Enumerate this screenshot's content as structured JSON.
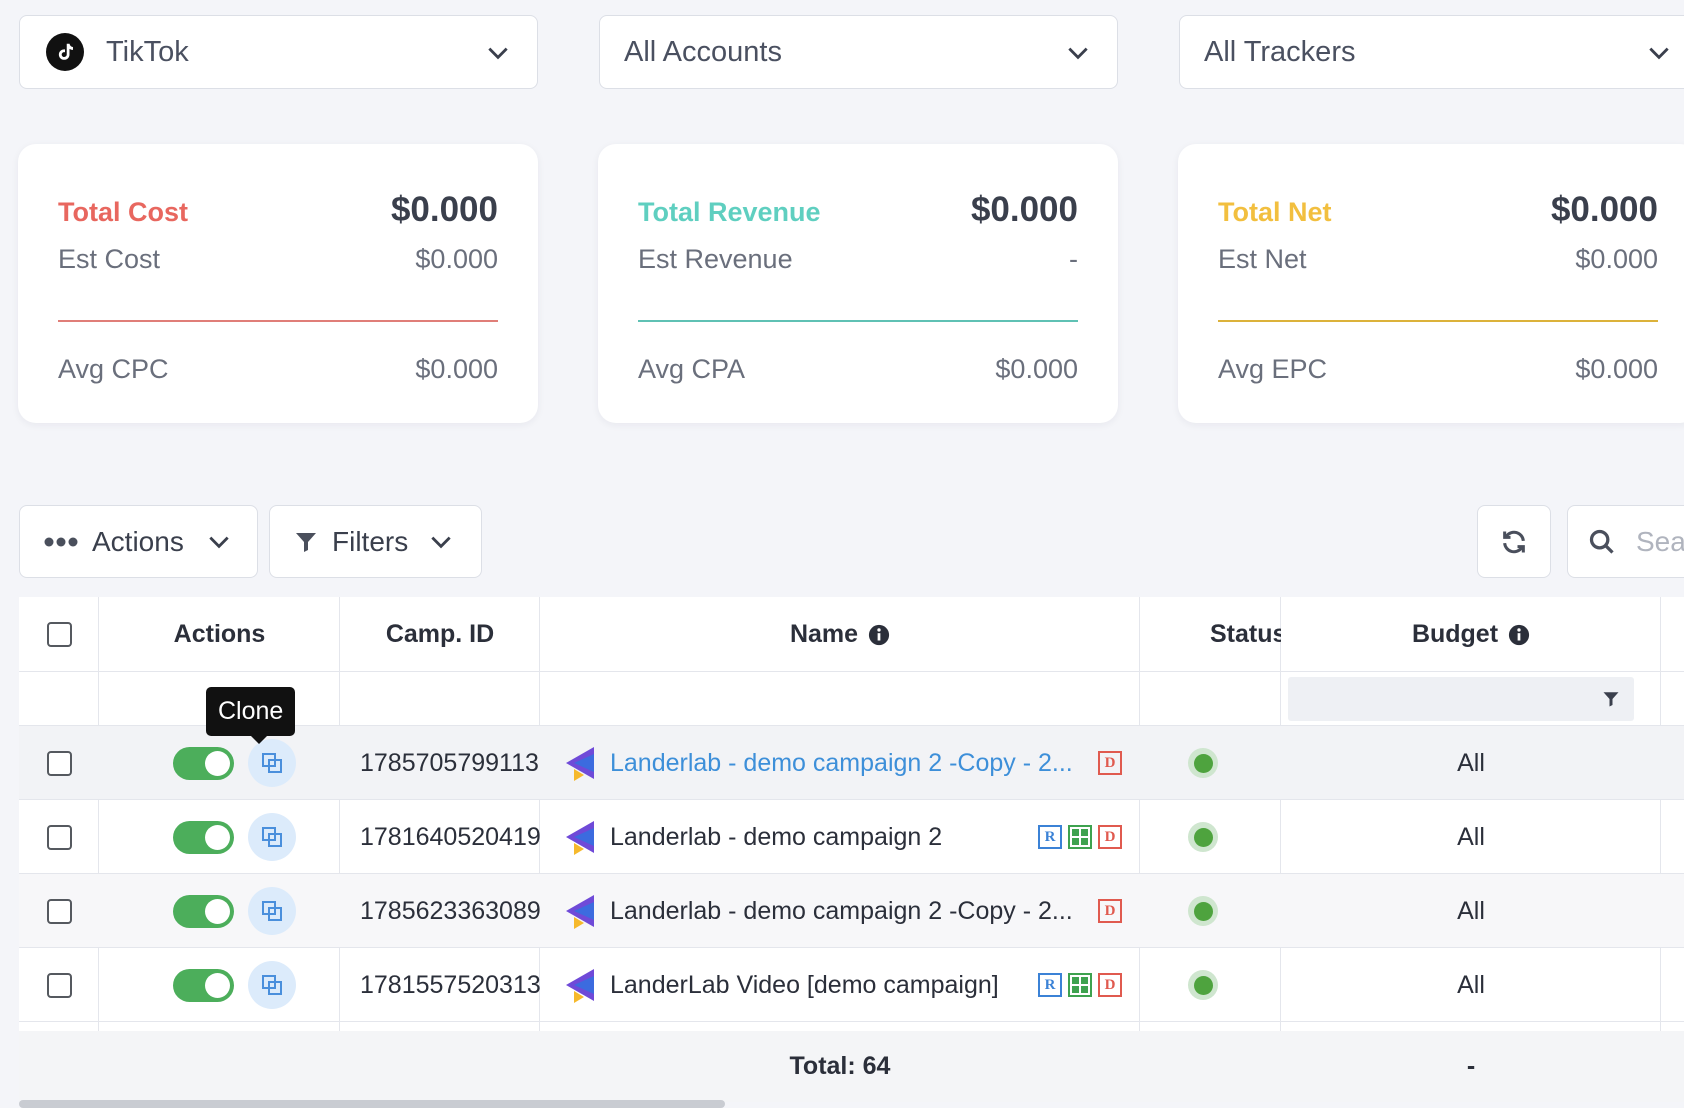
{
  "selectors": {
    "platform": "TikTok",
    "accounts": "All Accounts",
    "trackers": "All Trackers"
  },
  "cards": [
    {
      "title": "Total Cost",
      "title_color": "#e8675f",
      "total": "$0.000",
      "est_label": "Est Cost",
      "est_value": "$0.000",
      "avg_label": "Avg CPC",
      "avg_value": "$0.000",
      "rule_color": "#e07e78"
    },
    {
      "title": "Total Revenue",
      "title_color": "#5fcfc0",
      "total": "$0.000",
      "est_label": "Est Revenue",
      "est_value": "-",
      "avg_label": "Avg CPA",
      "avg_value": "$0.000",
      "rule_color": "#5fc1b4"
    },
    {
      "title": "Total Net",
      "title_color": "#f2bf3f",
      "total": "$0.000",
      "est_label": "Est Net",
      "est_value": "$0.000",
      "avg_label": "Avg EPC",
      "avg_value": "$0.000",
      "rule_color": "#dcb23a"
    }
  ],
  "toolbar": {
    "actions_label": "Actions",
    "filters_label": "Filters",
    "search_placeholder": "Sea"
  },
  "table": {
    "headers": {
      "actions": "Actions",
      "camp_id": "Camp. ID",
      "name": "Name",
      "status": "Status",
      "budget": "Budget"
    },
    "rows": [
      {
        "camp_id": "1785705799113",
        "name": "Landerlab - demo campaign 2 -Copy - 2...",
        "budget": "All",
        "badges": [
          "D"
        ],
        "link": true
      },
      {
        "camp_id": "1781640520419",
        "name": "Landerlab - demo campaign 2",
        "budget": "All",
        "badges": [
          "R",
          "G",
          "D"
        ],
        "link": false
      },
      {
        "camp_id": "1785623363089",
        "name": "Landerlab - demo campaign 2 -Copy - 2...",
        "budget": "All",
        "badges": [
          "D"
        ],
        "link": false
      },
      {
        "camp_id": "1781557520313",
        "name": "LanderLab Video [demo campaign]",
        "budget": "All",
        "badges": [
          "R",
          "G",
          "D"
        ],
        "link": false
      }
    ],
    "footer": {
      "total": "Total: 64",
      "budget": "-"
    }
  },
  "tooltip": "Clone",
  "colors": {
    "toggle_on": "#4cae5b",
    "link": "#3d8fd9",
    "status_active": "#4ea33e"
  },
  "icons": [
    "tiktok-icon",
    "chevron-down-icon",
    "more-dots-icon",
    "filter-icon",
    "refresh-icon",
    "search-icon",
    "clone-icon",
    "info-icon",
    "landerlab-logo-icon"
  ]
}
